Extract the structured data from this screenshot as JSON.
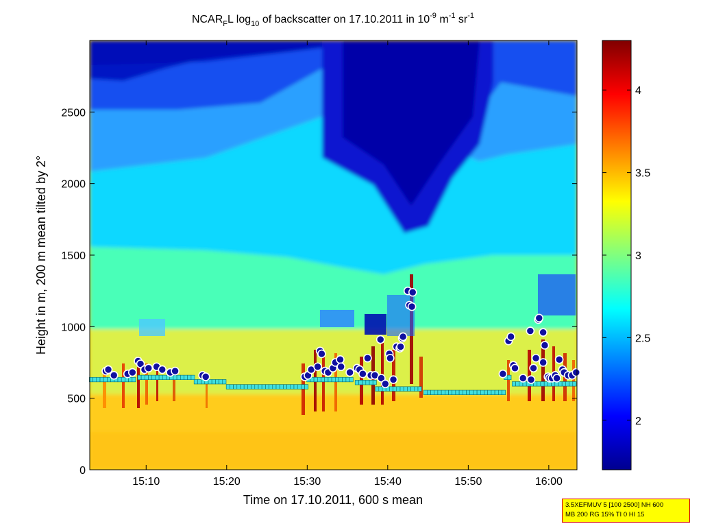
{
  "title": {
    "prefix": "NCAR",
    "prefix_sub": "F",
    "mid1": "L log",
    "log_sub": "10",
    "mid2": " of backscatter on 17.10.2011 in 10",
    "exp1": "-9",
    "mid3": " m",
    "exp2": "-1",
    "mid4": " sr",
    "exp3": "-1"
  },
  "info_box": {
    "line1": "3.5XEFMUV 5 [100 2500] NH 600",
    "line2": "MB 200 RG 15% TI 0 HI 15"
  },
  "colors": {
    "bg": "#ffffff",
    "info_fill": "#ffff00",
    "info_border": "#d40000",
    "marker_face": "#1010a0",
    "marker_edge": "#ffffff",
    "square_marker": "#40e0e0"
  },
  "chart_data": {
    "type": "heatmap",
    "title": "NCAR_F L log_10 of backscatter on 17.10.2011 in 10^-9 m^-1 sr^-1",
    "xlabel": "Time on 17.10.2011, 600 s mean",
    "ylabel": "Height in m, 200 m mean tilted by 2°",
    "xlim_min": [
      903,
      963.5
    ],
    "ylim": [
      0,
      3000
    ],
    "x_ticks": [
      910,
      920,
      930,
      940,
      950,
      960
    ],
    "x_tick_labels": [
      "15:10",
      "15:20",
      "15:30",
      "15:40",
      "15:50",
      "16:00"
    ],
    "y_ticks": [
      0,
      500,
      1000,
      1500,
      2000,
      2500
    ],
    "y_tick_labels": [
      "0",
      "500",
      "1000",
      "1500",
      "2000",
      "2500"
    ],
    "colorbar": {
      "range": [
        1.7,
        4.3
      ],
      "ticks": [
        2,
        2.5,
        3,
        3.5,
        4
      ],
      "tick_labels": [
        "2",
        "2.5",
        "3",
        "3.5",
        "4"
      ],
      "colormap": "jet"
    },
    "series": [
      {
        "marker": "square",
        "segments": [
          {
            "x": [
              903,
              909
            ],
            "y": 630
          },
          {
            "x": [
              909,
              916
            ],
            "y": 645
          },
          {
            "x": [
              916,
              920
            ],
            "y": 615
          },
          {
            "x": [
              920,
              930
            ],
            "y": 580
          },
          {
            "x": [
              930,
              936
            ],
            "y": 630
          },
          {
            "x": [
              936,
              938.5
            ],
            "y": 610
          },
          {
            "x": [
              938.5,
              944.5
            ],
            "y": 565
          },
          {
            "x": [
              944.5,
              954.5
            ],
            "y": 540
          },
          {
            "x": [
              954.5,
              955.5
            ],
            "y": 645
          },
          {
            "x": [
              955.5,
              963.5
            ],
            "y": 600
          }
        ]
      },
      {
        "marker": "circle",
        "points": [
          [
            905,
            690
          ],
          [
            905.3,
            700
          ],
          [
            906,
            660
          ],
          [
            907.7,
            670
          ],
          [
            908.3,
            680
          ],
          [
            909,
            760
          ],
          [
            909.3,
            740
          ],
          [
            909.8,
            700
          ],
          [
            910.3,
            710
          ],
          [
            911.3,
            720
          ],
          [
            912,
            700
          ],
          [
            913,
            680
          ],
          [
            913.6,
            690
          ],
          [
            917,
            660
          ],
          [
            917.4,
            650
          ],
          [
            929.7,
            650
          ],
          [
            930.1,
            660
          ],
          [
            930.5,
            700
          ],
          [
            931.3,
            720
          ],
          [
            931.6,
            830
          ],
          [
            931.8,
            810
          ],
          [
            932.2,
            690
          ],
          [
            932.6,
            680
          ],
          [
            933.2,
            710
          ],
          [
            933.5,
            750
          ],
          [
            934.1,
            770
          ],
          [
            934.2,
            720
          ],
          [
            935.3,
            680
          ],
          [
            936.2,
            710
          ],
          [
            936.5,
            700
          ],
          [
            936.9,
            670
          ],
          [
            937.5,
            780
          ],
          [
            937.9,
            660
          ],
          [
            938.4,
            660
          ],
          [
            939.2,
            640
          ],
          [
            939.1,
            910
          ],
          [
            939.7,
            600
          ],
          [
            940.2,
            810
          ],
          [
            940.3,
            780
          ],
          [
            940.7,
            630
          ],
          [
            941.1,
            860
          ],
          [
            941.5,
            850
          ],
          [
            941.6,
            860
          ],
          [
            941.8,
            920
          ],
          [
            941.9,
            930
          ],
          [
            942.5,
            1250
          ],
          [
            942.7,
            1150
          ],
          [
            943,
            1140
          ],
          [
            943.1,
            1240
          ],
          [
            954.3,
            670
          ],
          [
            955,
            900
          ],
          [
            955.3,
            930
          ],
          [
            955.6,
            730
          ],
          [
            955.8,
            710
          ],
          [
            957.7,
            970
          ],
          [
            956.8,
            640
          ],
          [
            957.8,
            630
          ],
          [
            958.1,
            710
          ],
          [
            958.4,
            780
          ],
          [
            958.7,
            1050
          ],
          [
            958.8,
            1060
          ],
          [
            959.3,
            960
          ],
          [
            959.5,
            870
          ],
          [
            959.3,
            750
          ],
          [
            959.9,
            650
          ],
          [
            960.1,
            640
          ],
          [
            960.4,
            640
          ],
          [
            960.8,
            660
          ],
          [
            961,
            640
          ],
          [
            961.3,
            770
          ],
          [
            961.7,
            700
          ],
          [
            961.9,
            680
          ],
          [
            962.4,
            660
          ],
          [
            962.9,
            660
          ],
          [
            963.4,
            680
          ]
        ]
      }
    ]
  }
}
